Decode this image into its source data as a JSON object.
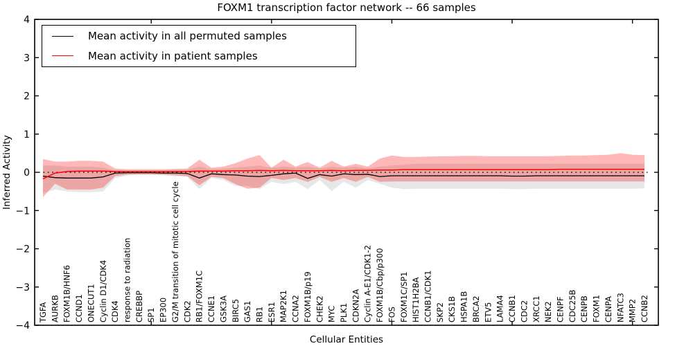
{
  "figure": {
    "title": "FOXM1 transcription factor network -- 66 samples",
    "xlabel": "Cellular Entities",
    "ylabel": "Inferred Activity"
  },
  "chart_data": {
    "type": "line",
    "title": "FOXM1 transcription factor network -- 66 samples",
    "xlabel": "Cellular Entities",
    "ylabel": "Inferred Activity",
    "ylim": [
      -4,
      4
    ],
    "yticks": [
      4,
      3,
      2,
      1,
      0,
      -1,
      -2,
      -3,
      -4
    ],
    "grid": false,
    "legend_position": "upper left",
    "zero_line": {
      "y": 0,
      "style": "dotted",
      "color": "#000000"
    },
    "categories": [
      "TGFA",
      "AURKB",
      "FOXM1B/HNF6",
      "CCND1",
      "ONECUT1",
      "Cyclin D1/CDK4",
      "CDK4",
      "response to radiation",
      "CREBBP",
      "SP1",
      "EP300",
      "G2/M transition of mitotic cell cycle",
      "CDK2",
      "RB1/FOXM1C",
      "CCNE1",
      "GSK3A",
      "BIRC5",
      "GAS1",
      "RB1",
      "ESR1",
      "MAP2K1",
      "CCNA2",
      "FOXM1B/p19",
      "CHEK2",
      "MYC",
      "PLK1",
      "CDKN2A",
      "Cyclin A-E1/CDK1-2",
      "FOXM1B/Cbp/p300",
      "FOS",
      "FOXM1C/SP1",
      "HIST1H2BA",
      "CCNB1/CDK1",
      "SKP2",
      "CKS1B",
      "HSPA1B",
      "BRCA2",
      "ETV5",
      "LAMA4",
      "CCNB1",
      "CDC2",
      "XRCC1",
      "NEK2",
      "CENPF",
      "CDC25B",
      "CENPB",
      "FOXM1",
      "CENPA",
      "NFATC3",
      "MMP2",
      "CCNB2"
    ],
    "series": [
      {
        "name": "Mean activity in all permuted samples",
        "kind": "line",
        "color": "#000000",
        "width": 1.3,
        "values": [
          -0.1,
          -0.14,
          -0.15,
          -0.15,
          -0.15,
          -0.12,
          -0.02,
          -0.01,
          -0.01,
          -0.01,
          -0.02,
          -0.02,
          -0.03,
          -0.15,
          -0.04,
          -0.06,
          -0.07,
          -0.1,
          -0.11,
          -0.08,
          -0.04,
          -0.02,
          -0.16,
          -0.06,
          -0.1,
          -0.04,
          -0.06,
          -0.05,
          -0.11,
          -0.09,
          -0.09,
          -0.09,
          -0.09,
          -0.09,
          -0.09,
          -0.09,
          -0.09,
          -0.09,
          -0.09,
          -0.1,
          -0.1,
          -0.09,
          -0.09,
          -0.09,
          -0.09,
          -0.09,
          -0.09,
          -0.09,
          -0.09,
          -0.09,
          -0.09
        ]
      },
      {
        "name": "Mean activity in patient samples",
        "kind": "line",
        "color": "#ff0000",
        "width": 1.5,
        "values": [
          -0.17,
          -0.02,
          0.02,
          0.03,
          0.03,
          0.03,
          0.02,
          0.02,
          0.02,
          0.02,
          0.02,
          0.02,
          0.02,
          0.03,
          0.03,
          0.03,
          0.04,
          0.04,
          0.05,
          0.04,
          0.05,
          0.04,
          0.04,
          0.04,
          0.05,
          0.04,
          0.05,
          0.05,
          0.06,
          0.06,
          0.07,
          0.07,
          0.07,
          0.07,
          0.07,
          0.07,
          0.07,
          0.07,
          0.07,
          0.07,
          0.07,
          0.07,
          0.07,
          0.08,
          0.08,
          0.08,
          0.08,
          0.08,
          0.08,
          0.08,
          0.08
        ]
      },
      {
        "name": "Permuted samples activity range",
        "kind": "band",
        "color": "#e7e7e7",
        "opacity": 1,
        "lower": [
          -0.55,
          -0.45,
          -0.5,
          -0.52,
          -0.52,
          -0.5,
          -0.15,
          -0.08,
          -0.07,
          -0.07,
          -0.08,
          -0.1,
          -0.12,
          -0.44,
          -0.15,
          -0.2,
          -0.36,
          -0.36,
          -0.44,
          -0.25,
          -0.31,
          -0.25,
          -0.44,
          -0.2,
          -0.49,
          -0.25,
          -0.4,
          -0.2,
          -0.3,
          -0.4,
          -0.44,
          -0.43,
          -0.43,
          -0.43,
          -0.43,
          -0.43,
          -0.43,
          -0.43,
          -0.43,
          -0.44,
          -0.44,
          -0.43,
          -0.43,
          -0.43,
          -0.43,
          -0.43,
          -0.43,
          -0.43,
          -0.43,
          -0.43,
          -0.42
        ],
        "upper": [
          0.18,
          0.18,
          0.15,
          0.15,
          0.15,
          0.12,
          0.05,
          0.05,
          0.05,
          0.05,
          0.05,
          0.06,
          0.07,
          0.15,
          0.08,
          0.1,
          0.12,
          0.15,
          0.18,
          0.12,
          0.15,
          0.12,
          0.15,
          0.1,
          0.15,
          0.12,
          0.15,
          0.1,
          0.15,
          0.18,
          0.2,
          0.22,
          0.22,
          0.22,
          0.22,
          0.22,
          0.22,
          0.22,
          0.22,
          0.22,
          0.22,
          0.22,
          0.22,
          0.22,
          0.22,
          0.22,
          0.22,
          0.22,
          0.22,
          0.22,
          0.22
        ]
      },
      {
        "name": "Patient samples activity range",
        "kind": "band",
        "color": "#ff0000",
        "opacity": 0.28,
        "lower": [
          -0.65,
          -0.3,
          -0.45,
          -0.45,
          -0.45,
          -0.4,
          -0.1,
          -0.06,
          -0.05,
          -0.05,
          -0.06,
          -0.08,
          -0.1,
          -0.34,
          -0.12,
          -0.15,
          -0.31,
          -0.43,
          -0.4,
          -0.15,
          -0.2,
          -0.15,
          -0.25,
          -0.12,
          -0.25,
          -0.15,
          -0.25,
          -0.12,
          -0.25,
          -0.24,
          -0.24,
          -0.24,
          -0.24,
          -0.24,
          -0.24,
          -0.24,
          -0.24,
          -0.24,
          -0.24,
          -0.24,
          -0.24,
          -0.24,
          -0.24,
          -0.24,
          -0.24,
          -0.24,
          -0.24,
          -0.24,
          -0.24,
          -0.24,
          -0.24
        ],
        "upper": [
          0.35,
          0.28,
          0.28,
          0.3,
          0.3,
          0.28,
          0.1,
          0.08,
          0.08,
          0.08,
          0.08,
          0.09,
          0.1,
          0.33,
          0.12,
          0.15,
          0.24,
          0.36,
          0.45,
          0.12,
          0.33,
          0.15,
          0.27,
          0.12,
          0.3,
          0.15,
          0.22,
          0.15,
          0.36,
          0.44,
          0.4,
          0.4,
          0.41,
          0.42,
          0.42,
          0.43,
          0.43,
          0.42,
          0.42,
          0.42,
          0.42,
          0.42,
          0.42,
          0.43,
          0.44,
          0.44,
          0.45,
          0.46,
          0.5,
          0.46,
          0.45
        ]
      }
    ]
  },
  "colors": {
    "permuted_line": "#000000",
    "patient_line": "#ff0000",
    "permuted_band": "#e7e7e7",
    "patient_band_overlay": "#ff0000",
    "axis": "#000000",
    "background": "#ffffff"
  }
}
